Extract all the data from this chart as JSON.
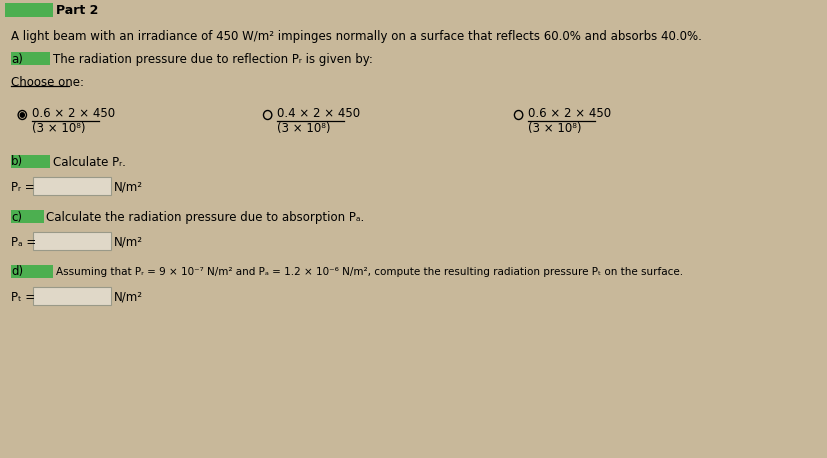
{
  "bg_color": "#c8b89a",
  "title": "Part 2",
  "intro": "A light beam with an irradiance of 450 W/m² impinges normally on a surface that reflects 60.0% and absorbs 40.0%.",
  "part_a_label": "a)",
  "part_a_text": "The radiation pressure due to reflection Pᵣ is given by:",
  "choose_one": "Choose one:",
  "option1_num": "0.6 × 2 × 450",
  "option1_den": "(3 × 10⁸)",
  "option2_num": "0.4 × 2 × 450",
  "option2_den": "(3 × 10⁸)",
  "option3_num": "0.6 × 2 × 450",
  "option3_den": "(3 × 10⁸)",
  "part_b_label": "b)",
  "part_b_text": "Calculate Pᵣ.",
  "part_b_eq": "Pᵣ =",
  "part_b_unit": "N/m²",
  "part_c_label": "c)",
  "part_c_text": "Calculate the radiation pressure due to absorption Pₐ.",
  "part_c_eq": "Pₐ =",
  "part_c_unit": "N/m²",
  "part_d_label": "d)",
  "part_d_text": "Assuming that Pᵣ = 9 × 10⁻⁷ N/m² and Pₐ = 1.2 × 10⁻⁶ N/m², compute the resulting radiation pressure Pₜ on the surface.",
  "part_d_eq": "Pₜ =",
  "part_d_unit": "N/m²",
  "highlight_green": "#4caf50",
  "text_color": "#000000",
  "input_box_color": "#e0d8c8"
}
